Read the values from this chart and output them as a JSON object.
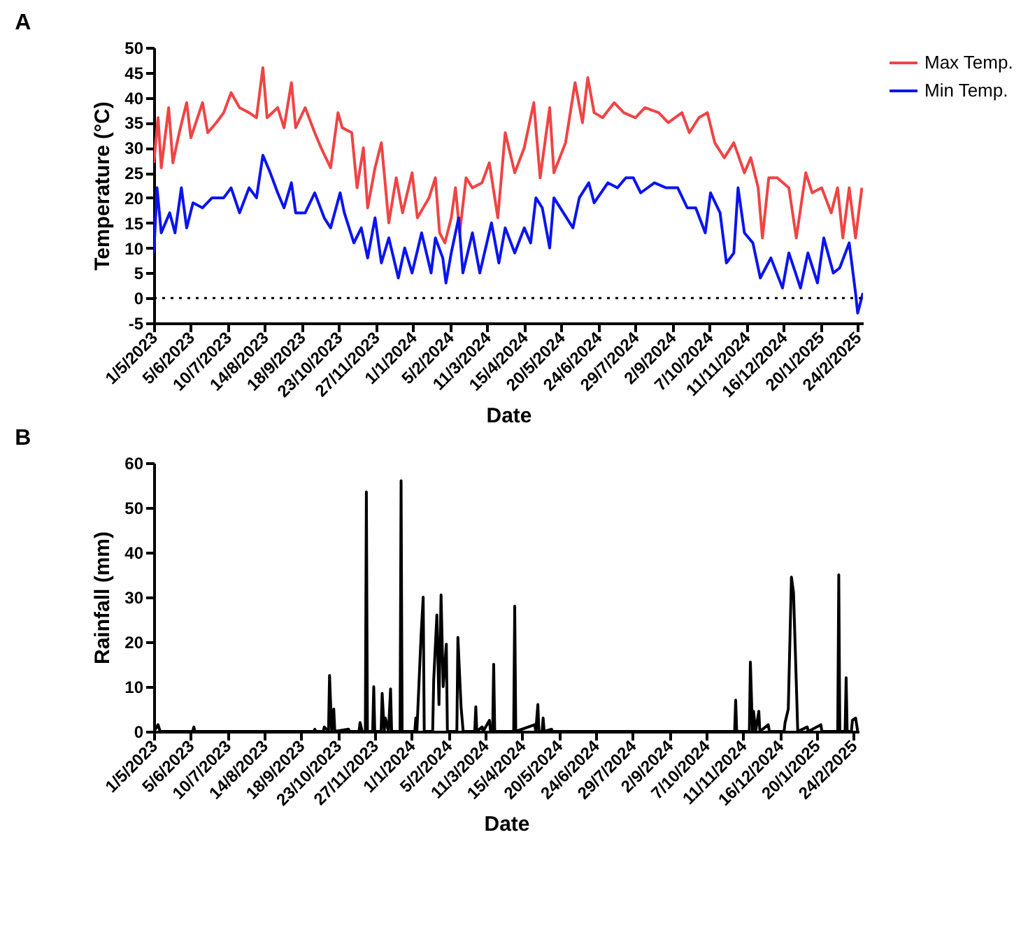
{
  "chart_data": [
    {
      "type": "line",
      "title": "A",
      "xlabel": "Date",
      "ylabel": "Temperature (°C)",
      "legend": "top right",
      "grid": false,
      "marker": "none",
      "xlim": [
        "2023-05-01",
        "2025-03-01"
      ],
      "ylim": [
        -5,
        50
      ],
      "yticks": [
        -5,
        0,
        5,
        10,
        15,
        20,
        25,
        30,
        35,
        40,
        45,
        50
      ],
      "xticks": [
        {
          "value": "2023-05-01",
          "label": "1/5/2023"
        },
        {
          "value": "2023-06-05",
          "label": "5/6/2023"
        },
        {
          "value": "2023-07-10",
          "label": "10/7/2023"
        },
        {
          "value": "2023-08-14",
          "label": "14/8/2023"
        },
        {
          "value": "2023-09-18",
          "label": "18/9/2023"
        },
        {
          "value": "2023-10-23",
          "label": "23/10/2023"
        },
        {
          "value": "2023-11-27",
          "label": "27/11/2023"
        },
        {
          "value": "2024-01-01",
          "label": "1/1/2024"
        },
        {
          "value": "2024-02-05",
          "label": "5/2/2024"
        },
        {
          "value": "2024-03-11",
          "label": "11/3/2024"
        },
        {
          "value": "2024-04-15",
          "label": "15/4/2024"
        },
        {
          "value": "2024-05-20",
          "label": "20/5/2024"
        },
        {
          "value": "2024-06-24",
          "label": "24/6/2024"
        },
        {
          "value": "2024-07-29",
          "label": "29/7/2024"
        },
        {
          "value": "2024-09-02",
          "label": "2/9/2024"
        },
        {
          "value": "2024-10-07",
          "label": "7/10/2024"
        },
        {
          "value": "2024-11-11",
          "label": "11/11/2024"
        },
        {
          "value": "2024-12-16",
          "label": "16/12/2024"
        },
        {
          "value": "2025-01-20",
          "label": "20/1/2025"
        },
        {
          "value": "2025-02-24",
          "label": "24/2/2025"
        }
      ],
      "ref_lines": [
        {
          "axis": "y",
          "value": 0,
          "color": "#000000",
          "line_style": "dotted"
        }
      ],
      "series": [
        {
          "name": "Max Temp.",
          "color": "#f04444",
          "x": [
            "2023-05-01",
            "2023-05-05",
            "2023-05-08",
            "2023-05-15",
            "2023-05-19",
            "2023-05-25",
            "2023-06-01",
            "2023-06-05",
            "2023-06-16",
            "2023-06-21",
            "2023-06-29",
            "2023-07-06",
            "2023-07-13",
            "2023-07-21",
            "2023-07-30",
            "2023-08-06",
            "2023-08-12",
            "2023-08-16",
            "2023-08-26",
            "2023-09-01",
            "2023-09-08",
            "2023-09-12",
            "2023-09-21",
            "2023-09-30",
            "2023-10-06",
            "2023-10-15",
            "2023-10-22",
            "2023-10-26",
            "2023-11-04",
            "2023-11-09",
            "2023-11-15",
            "2023-11-19",
            "2023-11-26",
            "2023-12-02",
            "2023-12-09",
            "2023-12-16",
            "2023-12-22",
            "2023-12-31",
            "2024-01-05",
            "2024-01-16",
            "2024-01-22",
            "2024-01-26",
            "2024-01-31",
            "2024-02-06",
            "2024-02-10",
            "2024-02-14",
            "2024-02-20",
            "2024-02-26",
            "2024-03-06",
            "2024-03-13",
            "2024-03-21",
            "2024-03-28",
            "2024-04-06",
            "2024-04-15",
            "2024-04-24",
            "2024-04-30",
            "2024-05-09",
            "2024-05-13",
            "2024-05-24",
            "2024-06-02",
            "2024-06-09",
            "2024-06-14",
            "2024-06-20",
            "2024-06-28",
            "2024-07-09",
            "2024-07-18",
            "2024-07-29",
            "2024-08-07",
            "2024-08-20",
            "2024-08-29",
            "2024-09-11",
            "2024-09-18",
            "2024-09-27",
            "2024-10-05",
            "2024-10-12",
            "2024-10-21",
            "2024-10-30",
            "2024-11-09",
            "2024-11-15",
            "2024-11-22",
            "2024-11-26",
            "2024-12-02",
            "2024-12-10",
            "2024-12-21",
            "2024-12-28",
            "2025-01-06",
            "2025-01-12",
            "2025-01-21",
            "2025-01-30",
            "2025-02-05",
            "2025-02-10",
            "2025-02-16",
            "2025-02-22",
            "2025-02-28"
          ],
          "values": [
            27,
            36,
            26,
            38,
            27,
            33,
            39,
            32,
            39,
            33,
            35,
            37,
            41,
            38,
            37,
            36,
            46,
            36,
            38,
            34,
            43,
            34,
            38,
            33,
            30,
            26,
            37,
            34,
            33,
            22,
            30,
            18,
            26,
            31,
            15,
            24,
            17,
            25,
            16,
            20,
            24,
            13,
            11,
            16,
            22,
            13,
            24,
            22,
            23,
            27,
            16,
            33,
            25,
            30,
            39,
            24,
            38,
            25,
            31,
            43,
            35,
            44,
            37,
            36,
            39,
            37,
            36,
            38,
            37,
            35,
            37,
            33,
            36,
            37,
            31,
            28,
            31,
            25,
            28,
            22,
            12,
            24,
            24,
            22,
            12,
            25,
            21,
            22,
            17,
            22,
            12,
            22,
            12,
            22
          ]
        },
        {
          "name": "Min Temp.",
          "color": "#0a14f0",
          "x": [
            "2023-05-01",
            "2023-05-04",
            "2023-05-08",
            "2023-05-16",
            "2023-05-21",
            "2023-05-27",
            "2023-06-01",
            "2023-06-07",
            "2023-06-16",
            "2023-06-25",
            "2023-07-06",
            "2023-07-13",
            "2023-07-21",
            "2023-07-30",
            "2023-08-06",
            "2023-08-12",
            "2023-08-19",
            "2023-08-26",
            "2023-09-01",
            "2023-09-08",
            "2023-09-12",
            "2023-09-21",
            "2023-09-30",
            "2023-10-09",
            "2023-10-15",
            "2023-10-24",
            "2023-10-28",
            "2023-11-06",
            "2023-11-13",
            "2023-11-19",
            "2023-11-26",
            "2023-12-02",
            "2023-12-09",
            "2023-12-18",
            "2023-12-24",
            "2023-12-31",
            "2024-01-09",
            "2024-01-18",
            "2024-01-22",
            "2024-01-29",
            "2024-02-01",
            "2024-02-06",
            "2024-02-13",
            "2024-02-17",
            "2024-02-26",
            "2024-03-04",
            "2024-03-15",
            "2024-03-22",
            "2024-03-28",
            "2024-04-06",
            "2024-04-15",
            "2024-04-21",
            "2024-04-26",
            "2024-05-02",
            "2024-05-09",
            "2024-05-13",
            "2024-05-22",
            "2024-05-31",
            "2024-06-06",
            "2024-06-15",
            "2024-06-20",
            "2024-07-03",
            "2024-07-12",
            "2024-07-20",
            "2024-07-27",
            "2024-08-03",
            "2024-08-16",
            "2024-08-27",
            "2024-09-07",
            "2024-09-16",
            "2024-09-24",
            "2024-10-03",
            "2024-10-08",
            "2024-10-17",
            "2024-10-23",
            "2024-10-30",
            "2024-11-03",
            "2024-11-09",
            "2024-11-17",
            "2024-11-24",
            "2024-12-04",
            "2024-12-15",
            "2024-12-21",
            "2025-01-01",
            "2025-01-08",
            "2025-01-17",
            "2025-01-23",
            "2025-02-01",
            "2025-02-07",
            "2025-02-16",
            "2025-02-22",
            "2025-02-24",
            "2025-03-01"
          ],
          "values": [
            9,
            22,
            13,
            17,
            13,
            22,
            14,
            19,
            18,
            20,
            20,
            22,
            17,
            22,
            20,
            28.5,
            25,
            21,
            18,
            23,
            17,
            17,
            21,
            16,
            14,
            21,
            17,
            11,
            14,
            8,
            16,
            7,
            12,
            4,
            10,
            5,
            13,
            5,
            12,
            8,
            3,
            9,
            16,
            5,
            13,
            5,
            15,
            7,
            14,
            9,
            14,
            11,
            20,
            18,
            10,
            20,
            17,
            14,
            20,
            23,
            19,
            23,
            22,
            24,
            24,
            21,
            23,
            22,
            22,
            18,
            18,
            13,
            21,
            17,
            7,
            9,
            22,
            13,
            11,
            4,
            8,
            2,
            9,
            2,
            9,
            3,
            12,
            5,
            6,
            11,
            1,
            -3,
            1
          ]
        }
      ]
    },
    {
      "type": "line",
      "title": "B",
      "xlabel": "Date",
      "ylabel": "Rainfall (mm)",
      "grid": false,
      "marker": "none",
      "xlim": [
        "2023-05-01",
        "2025-03-01"
      ],
      "ylim": [
        0,
        60
      ],
      "yticks": [
        0,
        10,
        20,
        30,
        40,
        50,
        60
      ],
      "xticks": [
        {
          "value": "2023-05-01",
          "label": "1/5/2023"
        },
        {
          "value": "2023-06-05",
          "label": "5/6/2023"
        },
        {
          "value": "2023-07-10",
          "label": "10/7/2023"
        },
        {
          "value": "2023-08-14",
          "label": "14/8/2023"
        },
        {
          "value": "2023-09-18",
          "label": "18/9/2023"
        },
        {
          "value": "2023-10-23",
          "label": "23/10/2023"
        },
        {
          "value": "2023-11-27",
          "label": "27/11/2023"
        },
        {
          "value": "2024-01-01",
          "label": "1/1/2024"
        },
        {
          "value": "2024-02-05",
          "label": "5/2/2024"
        },
        {
          "value": "2024-03-11",
          "label": "11/3/2024"
        },
        {
          "value": "2024-04-15",
          "label": "15/4/2024"
        },
        {
          "value": "2024-05-20",
          "label": "20/5/2024"
        },
        {
          "value": "2024-06-24",
          "label": "24/6/2024"
        },
        {
          "value": "2024-07-29",
          "label": "29/7/2024"
        },
        {
          "value": "2024-09-02",
          "label": "2/9/2024"
        },
        {
          "value": "2024-10-07",
          "label": "7/10/2024"
        },
        {
          "value": "2024-11-11",
          "label": "11/11/2024"
        },
        {
          "value": "2024-12-16",
          "label": "16/12/2024"
        },
        {
          "value": "2025-01-20",
          "label": "20/1/2025"
        },
        {
          "value": "2025-02-24",
          "label": "24/2/2025"
        }
      ],
      "series": [
        {
          "color": "#000000",
          "x": [
            "2023-05-01",
            "2023-05-05",
            "2023-05-07",
            "2023-06-07",
            "2023-06-08",
            "2023-06-09",
            "2023-09-30",
            "2023-10-01",
            "2023-10-02",
            "2023-10-09",
            "2023-10-10",
            "2023-10-14",
            "2023-10-15",
            "2023-10-17",
            "2023-10-19",
            "2023-10-20",
            "2023-11-02",
            "2023-11-03",
            "2023-11-12",
            "2023-11-13",
            "2023-11-15",
            "2023-11-18",
            "2023-11-19",
            "2023-11-20",
            "2023-11-25",
            "2023-11-26",
            "2023-11-27",
            "2023-12-03",
            "2023-12-04",
            "2023-12-06",
            "2023-12-07",
            "2023-12-10",
            "2023-12-12",
            "2023-12-13",
            "2023-12-21",
            "2023-12-22",
            "2023-12-23",
            "2024-01-04",
            "2024-01-05",
            "2024-01-06",
            "2024-01-10",
            "2024-01-12",
            "2024-01-13",
            "2024-01-21",
            "2024-01-22",
            "2024-01-25",
            "2024-01-27",
            "2024-01-29",
            "2024-01-31",
            "2024-02-03",
            "2024-02-04",
            "2024-02-13",
            "2024-02-14",
            "2024-02-17",
            "2024-02-19",
            "2024-03-01",
            "2024-03-02",
            "2024-03-03",
            "2024-03-08",
            "2024-03-09",
            "2024-03-15",
            "2024-03-16",
            "2024-03-18",
            "2024-03-19",
            "2024-03-20",
            "2024-04-07",
            "2024-04-08",
            "2024-04-09",
            "2024-04-27",
            "2024-04-28",
            "2024-04-30",
            "2024-05-01",
            "2024-05-04",
            "2024-05-05",
            "2024-05-06",
            "2024-05-13",
            "2024-05-14",
            "2024-11-03",
            "2024-11-04",
            "2024-11-05",
            "2024-11-17",
            "2024-11-18",
            "2024-11-20",
            "2024-11-21",
            "2024-11-23",
            "2024-11-26",
            "2024-11-27",
            "2024-12-05",
            "2024-12-06",
            "2024-12-20",
            "2024-12-21",
            "2024-12-24",
            "2024-12-27",
            "2024-12-29",
            "2025-01-01",
            "2025-01-02",
            "2025-01-11",
            "2025-01-12",
            "2025-01-24",
            "2025-01-25",
            "2025-02-09",
            "2025-02-10",
            "2025-02-11",
            "2025-02-16",
            "2025-02-17",
            "2025-02-18",
            "2025-02-22",
            "2025-02-23",
            "2025-02-26",
            "2025-02-28"
          ],
          "values": [
            0,
            1.5,
            0,
            0,
            1,
            0,
            0,
            0.5,
            0,
            0,
            1,
            0,
            12.5,
            0,
            5,
            0,
            0.5,
            0,
            0,
            2,
            0,
            0,
            53.5,
            0,
            0,
            10,
            0,
            0,
            8.5,
            0,
            3,
            0,
            9.5,
            0,
            0,
            56,
            0,
            0,
            3,
            0,
            21.5,
            30,
            0,
            0,
            11.5,
            26,
            6,
            30.5,
            10,
            19.5,
            0,
            0,
            21,
            5.5,
            0,
            0,
            5.5,
            0,
            1,
            0,
            2.5,
            0,
            0,
            15,
            0,
            0,
            28,
            0,
            1.5,
            0,
            6,
            0,
            0,
            3,
            0,
            0.5,
            0,
            0,
            7,
            0,
            0,
            15.5,
            0,
            4.5,
            0,
            4.5,
            0,
            1.5,
            0,
            0,
            2,
            5,
            34.5,
            31,
            8,
            0,
            1,
            0,
            1.5,
            0,
            0,
            35,
            0,
            0,
            12,
            0,
            0,
            2.5,
            3,
            0
          ]
        }
      ]
    }
  ]
}
